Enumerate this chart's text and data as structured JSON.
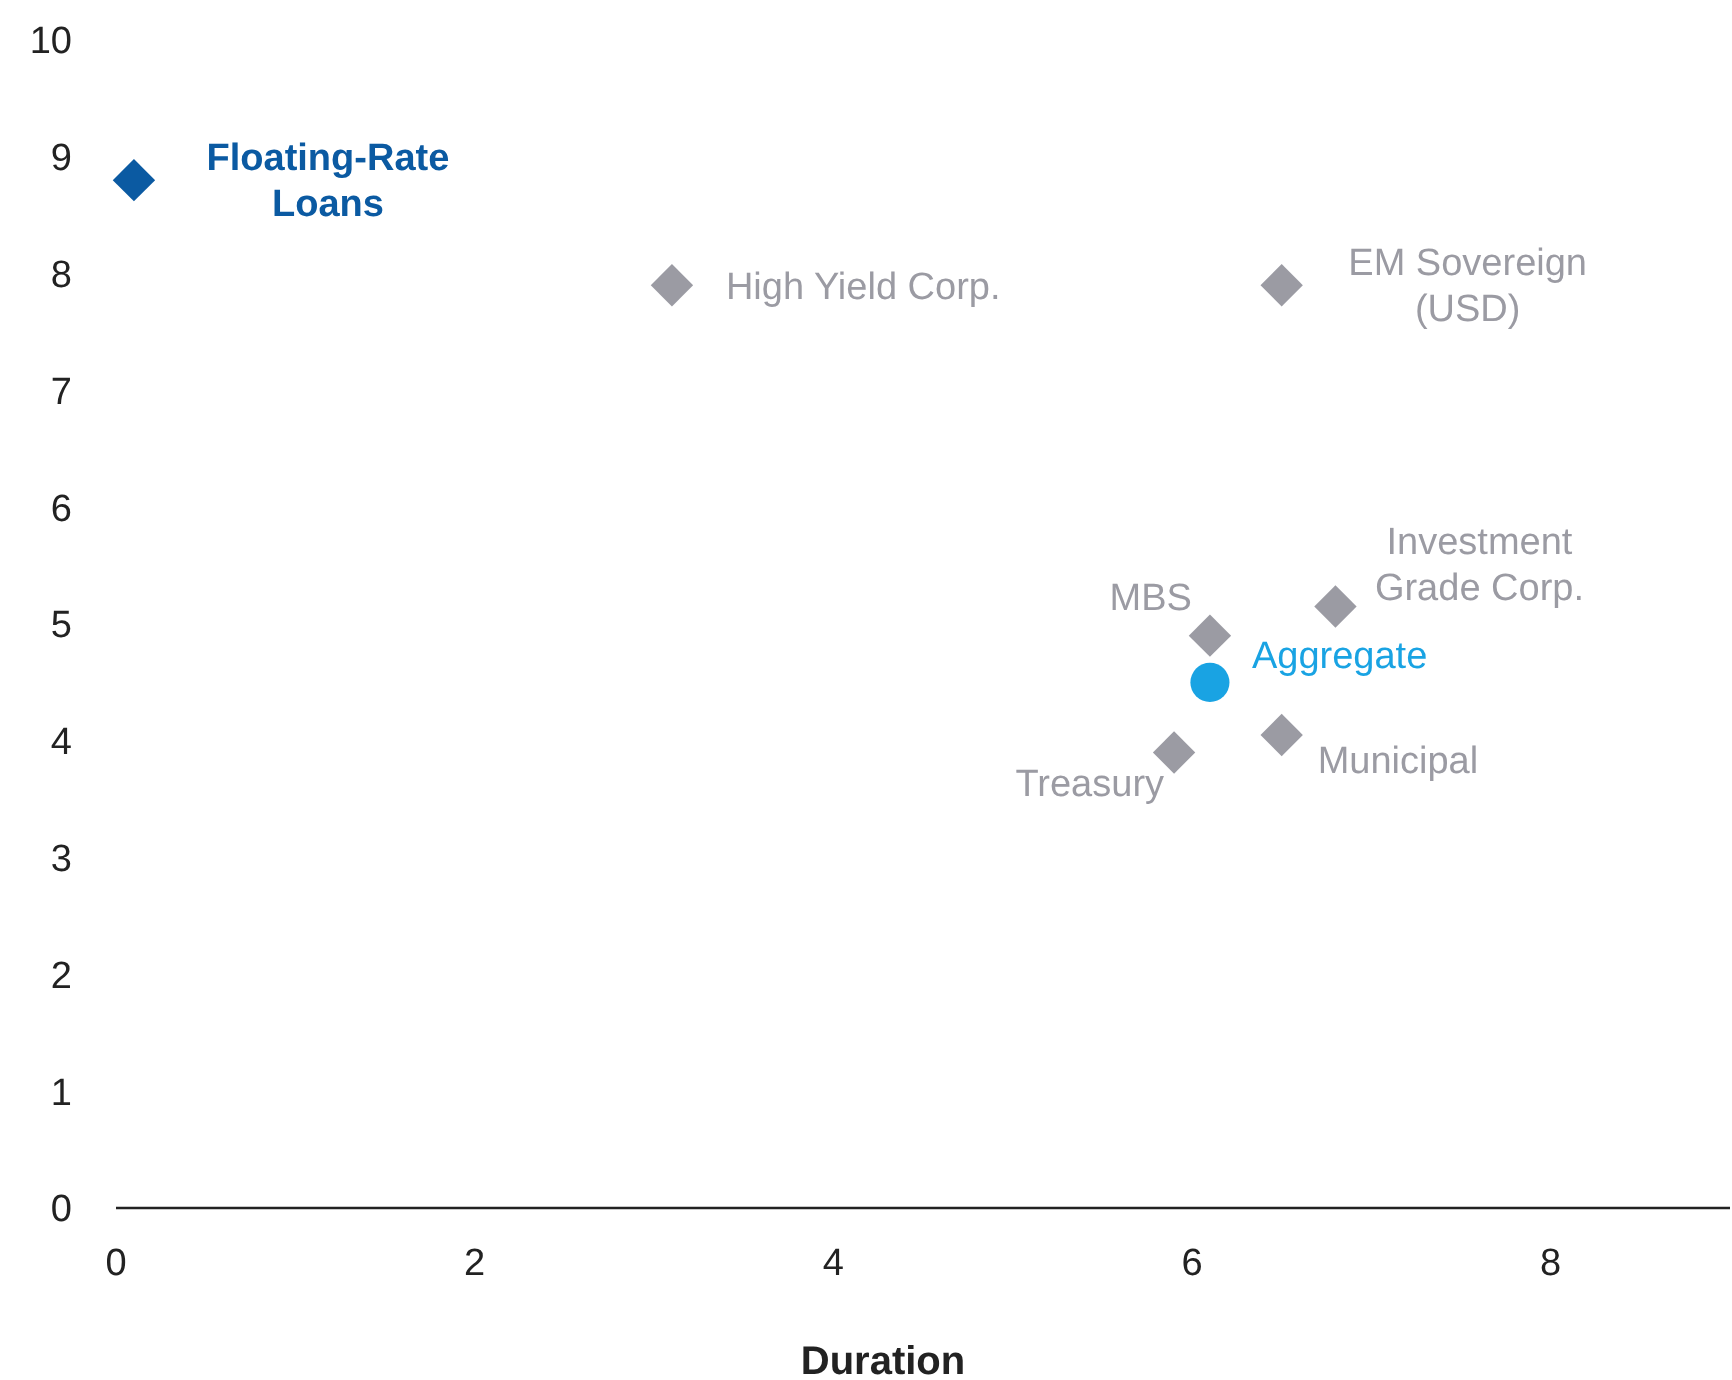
{
  "chart_data": {
    "type": "scatter",
    "xlabel": "Duration",
    "xlim": [
      0,
      9
    ],
    "xticks": [
      0,
      2,
      4,
      6,
      8
    ],
    "ylim": [
      0,
      10
    ],
    "yticks": [
      0,
      1,
      2,
      3,
      4,
      5,
      6,
      7,
      8,
      9,
      10
    ],
    "grid": false,
    "series": [
      {
        "name": "Floating-Rate Loans",
        "color": "#0b5aa2",
        "marker": "diamond",
        "x": [
          0.1
        ],
        "values": [
          8.8
        ]
      },
      {
        "name": "High Yield Corp.",
        "color": "#9b9ba3",
        "marker": "diamond",
        "x": [
          3.1
        ],
        "values": [
          7.9
        ]
      },
      {
        "name": "EM Sovereign (USD)",
        "color": "#9b9ba3",
        "marker": "diamond",
        "x": [
          6.5
        ],
        "values": [
          7.9
        ]
      },
      {
        "name": "Investment Grade Corp.",
        "color": "#9b9ba3",
        "marker": "diamond",
        "x": [
          6.8
        ],
        "values": [
          5.15
        ]
      },
      {
        "name": "MBS",
        "color": "#9b9ba3",
        "marker": "diamond",
        "x": [
          6.1
        ],
        "values": [
          4.9
        ]
      },
      {
        "name": "Aggregate",
        "color": "#19a3e3",
        "marker": "circle",
        "x": [
          6.1
        ],
        "values": [
          4.5
        ]
      },
      {
        "name": "Municipal",
        "color": "#9b9ba3",
        "marker": "diamond",
        "x": [
          6.5
        ],
        "values": [
          4.05
        ]
      },
      {
        "name": "Treasury",
        "color": "#9b9ba3",
        "marker": "diamond",
        "x": [
          5.9
        ],
        "values": [
          3.9
        ]
      }
    ]
  }
}
